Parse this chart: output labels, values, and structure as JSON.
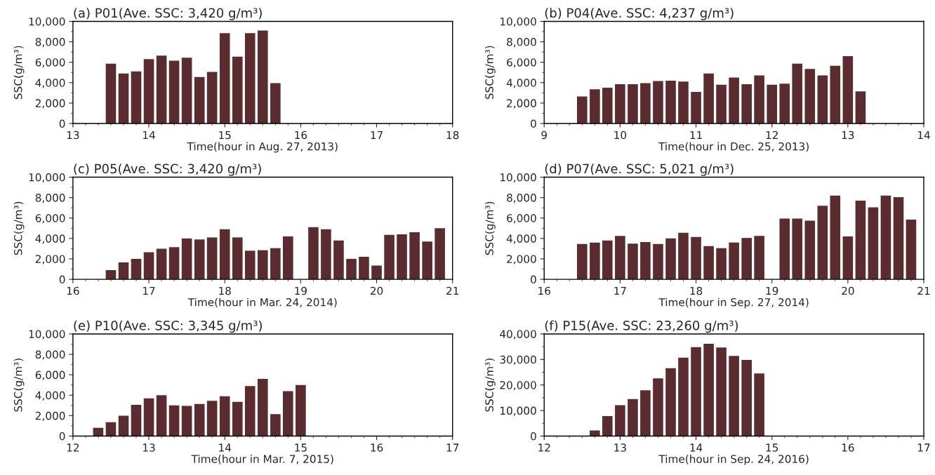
{
  "chart_data": [
    {
      "type": "bar",
      "title": "(a) P01(Ave. SSC: 3,420 g/m³)",
      "xlabel": "Time(hour in Aug. 27, 2013)",
      "ylabel": "SSC(g/m³)",
      "color": "#5b2c2f",
      "x": [
        13.5,
        13.667,
        13.833,
        14.0,
        14.167,
        14.333,
        14.5,
        14.667,
        14.833,
        15.0,
        15.167,
        15.333,
        15.5,
        15.667
      ],
      "values": [
        5850,
        4900,
        5100,
        6300,
        6650,
        6150,
        6450,
        4550,
        5050,
        8850,
        6550,
        8850,
        9100,
        3950
      ],
      "xlim": [
        13,
        18
      ],
      "xticks": [
        13,
        14,
        15,
        16,
        17,
        18
      ],
      "ylim": [
        0,
        10000
      ],
      "yticks": [
        0,
        {
          "value": 2000,
          "label": "2,000"
        },
        {
          "value": 4000,
          "label": "4,000"
        },
        {
          "value": 6000,
          "label": "6,000"
        },
        {
          "value": 8000,
          "label": "8,000"
        },
        {
          "value": 10000,
          "label": "10,000"
        }
      ]
    },
    {
      "type": "bar",
      "title": "(b) P04(Ave. SSC: 4,237 g/m³)",
      "xlabel": "Time(hour in Dec. 25, 2013)",
      "ylabel": "SSC(g/m³)",
      "color": "#5b2c2f",
      "x": [
        9.5,
        9.667,
        9.833,
        10.0,
        10.167,
        10.333,
        10.5,
        10.667,
        10.833,
        11.0,
        11.167,
        11.333,
        11.5,
        11.667,
        11.833,
        12.0,
        12.167,
        12.333,
        12.5,
        12.667,
        12.833,
        13.0,
        13.167
      ],
      "values": [
        2650,
        3350,
        3500,
        3850,
        3850,
        3950,
        4150,
        4200,
        4100,
        3100,
        4900,
        3800,
        4500,
        3850,
        4700,
        3800,
        3900,
        5850,
        5350,
        4700,
        5650,
        6600,
        3150
      ],
      "xlim": [
        9,
        14
      ],
      "xticks": [
        9,
        10,
        11,
        12,
        13,
        14
      ],
      "ylim": [
        0,
        10000
      ],
      "yticks": [
        0,
        {
          "value": 2000,
          "label": "2,000"
        },
        {
          "value": 4000,
          "label": "4,000"
        },
        {
          "value": 6000,
          "label": "6,000"
        },
        {
          "value": 8000,
          "label": "8,000"
        },
        {
          "value": 10000,
          "label": "10,000"
        }
      ]
    },
    {
      "type": "bar",
      "title": "(c) P05(Ave. SSC: 3,420 g/m³)",
      "xlabel": "Time(hour in Mar. 24, 2014)",
      "ylabel": "SSC(g/m³)",
      "color": "#5b2c2f",
      "x": [
        16.5,
        16.667,
        16.833,
        17.0,
        17.167,
        17.333,
        17.5,
        17.667,
        17.833,
        18.0,
        18.167,
        18.333,
        18.5,
        18.667,
        18.833,
        19.0,
        19.167,
        19.333,
        19.5,
        19.667,
        19.833,
        20.0,
        20.167,
        20.333,
        20.5,
        20.667,
        20.833
      ],
      "values": [
        900,
        1650,
        2000,
        2650,
        3000,
        3150,
        4000,
        3900,
        4100,
        4900,
        4100,
        2800,
        2850,
        3050,
        4200,
        null,
        5100,
        4900,
        3800,
        2000,
        2200,
        1350,
        4350,
        4400,
        4600,
        3700,
        5000
      ],
      "xlim": [
        16,
        21
      ],
      "xticks": [
        16,
        17,
        18,
        19,
        20,
        21
      ],
      "ylim": [
        0,
        10000
      ],
      "yticks": [
        0,
        {
          "value": 2000,
          "label": "2,000"
        },
        {
          "value": 4000,
          "label": "4,000"
        },
        {
          "value": 6000,
          "label": "6,000"
        },
        {
          "value": 8000,
          "label": "8,000"
        },
        {
          "value": 10000,
          "label": "10,000"
        }
      ]
    },
    {
      "type": "bar",
      "title": "(d) P07(Ave. SSC: 5,021 g/m³)",
      "xlabel": "Time(hour in Sep. 27, 2014)",
      "ylabel": "SSC(g/m³)",
      "color": "#5b2c2f",
      "x": [
        16.5,
        16.667,
        16.833,
        17.0,
        17.167,
        17.333,
        17.5,
        17.667,
        17.833,
        18.0,
        18.167,
        18.333,
        18.5,
        18.667,
        18.833,
        19.0,
        19.167,
        19.333,
        19.5,
        19.667,
        19.833,
        20.0,
        20.167,
        20.333,
        20.5,
        20.667,
        20.833
      ],
      "values": [
        3450,
        3600,
        3800,
        4250,
        3500,
        3650,
        3450,
        4000,
        4550,
        4150,
        3250,
        3050,
        3600,
        4050,
        4250,
        null,
        5950,
        5950,
        5750,
        7200,
        8200,
        4200,
        7700,
        7050,
        8200,
        8050,
        5850
      ],
      "xlim": [
        16,
        21
      ],
      "xticks": [
        16,
        17,
        18,
        19,
        20,
        21
      ],
      "ylim": [
        0,
        10000
      ],
      "yticks": [
        0,
        {
          "value": 2000,
          "label": "2,000"
        },
        {
          "value": 4000,
          "label": "4,000"
        },
        {
          "value": 6000,
          "label": "6,000"
        },
        {
          "value": 8000,
          "label": "8,000"
        },
        {
          "value": 10000,
          "label": "10,000"
        }
      ]
    },
    {
      "type": "bar",
      "title": "(e) P10(Ave. SSC: 3,345 g/m³)",
      "xlabel": "Time(hour in Mar. 7, 2015)",
      "ylabel": "SSC(g/m³)",
      "color": "#5b2c2f",
      "x": [
        12.333,
        12.5,
        12.667,
        12.833,
        13.0,
        13.167,
        13.333,
        13.5,
        13.667,
        13.833,
        14.0,
        14.167,
        14.333,
        14.5,
        14.667,
        14.833,
        15.0
      ],
      "values": [
        800,
        1350,
        2000,
        3050,
        3700,
        4000,
        3000,
        2950,
        3150,
        3450,
        3900,
        3350,
        4900,
        5600,
        2150,
        4400,
        5000
      ],
      "xlim": [
        12,
        17
      ],
      "xticks": [
        12,
        13,
        14,
        15,
        16,
        17
      ],
      "ylim": [
        0,
        10000
      ],
      "yticks": [
        0,
        {
          "value": 2000,
          "label": "2,000"
        },
        {
          "value": 4000,
          "label": "4,000"
        },
        {
          "value": 6000,
          "label": "6,000"
        },
        {
          "value": 8000,
          "label": "8,000"
        },
        {
          "value": 10000,
          "label": "10,000"
        }
      ]
    },
    {
      "type": "bar",
      "title": "(f) P15(Ave. SSC: 23,260 g/m³)",
      "xlabel": "Time(hour in Sep. 24, 2016)",
      "ylabel": "SSC(g/m³)",
      "color": "#5b2c2f",
      "x": [
        12.667,
        12.833,
        13.0,
        13.167,
        13.333,
        13.5,
        13.667,
        13.833,
        14.0,
        14.167,
        14.333,
        14.5,
        14.667,
        14.833
      ],
      "values": [
        2200,
        7800,
        12100,
        14500,
        17900,
        22600,
        26600,
        30700,
        34800,
        36100,
        34700,
        31400,
        29800,
        24500
      ],
      "xlim": [
        12,
        17
      ],
      "xticks": [
        12,
        13,
        14,
        15,
        16,
        17
      ],
      "ylim": [
        0,
        40000
      ],
      "yticks": [
        0,
        {
          "value": 10000,
          "label": "10,000"
        },
        {
          "value": 20000,
          "label": "20,000"
        },
        {
          "value": 30000,
          "label": "30,000"
        },
        {
          "value": 40000,
          "label": "40,000"
        }
      ]
    }
  ]
}
